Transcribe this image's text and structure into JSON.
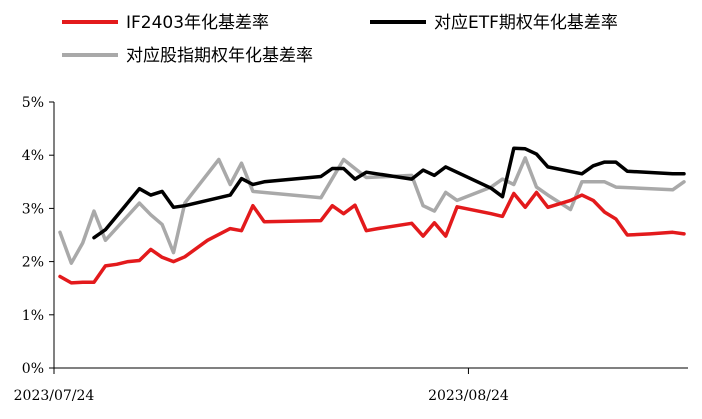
{
  "chart_data": {
    "type": "line",
    "ylim": [
      0,
      5
    ],
    "y_ticks": [
      "0%",
      "1%",
      "2%",
      "3%",
      "4%",
      "5%"
    ],
    "x_ticks": [
      "2023/07/24",
      "2023/08/24"
    ],
    "legend_position": "top",
    "grid": false,
    "series": [
      {
        "name": "IF2403年化基差率",
        "color": "#e31a1c",
        "points": [
          [
            0,
            1.72
          ],
          [
            1,
            1.6
          ],
          [
            2,
            1.61
          ],
          [
            3,
            1.61
          ],
          [
            4,
            1.92
          ],
          [
            5,
            1.95
          ],
          [
            6,
            2.0
          ],
          [
            7,
            2.02
          ],
          [
            8,
            2.23
          ],
          [
            9,
            2.08
          ],
          [
            10,
            2.0
          ],
          [
            11,
            2.09
          ],
          [
            13,
            2.4
          ],
          [
            15,
            2.62
          ],
          [
            16,
            2.58
          ],
          [
            17,
            3.05
          ],
          [
            18,
            2.75
          ],
          [
            23,
            2.77
          ],
          [
            24,
            3.05
          ],
          [
            25,
            2.9
          ],
          [
            26,
            3.06
          ],
          [
            27,
            2.58
          ],
          [
            28,
            2.62
          ],
          [
            31,
            2.72
          ],
          [
            32,
            2.48
          ],
          [
            33,
            2.73
          ],
          [
            34,
            2.48
          ],
          [
            35,
            3.03
          ],
          [
            38,
            2.9
          ],
          [
            39,
            2.85
          ],
          [
            40,
            3.28
          ],
          [
            41,
            3.02
          ],
          [
            42,
            3.3
          ],
          [
            43,
            3.02
          ],
          [
            45,
            3.15
          ],
          [
            46,
            3.25
          ],
          [
            47,
            3.15
          ],
          [
            48,
            2.93
          ],
          [
            49,
            2.8
          ],
          [
            50,
            2.5
          ],
          [
            52,
            2.52
          ],
          [
            54,
            2.55
          ],
          [
            55,
            2.52
          ]
        ]
      },
      {
        "name": "对应ETF期权年化基差率",
        "color": "#000000",
        "points": [
          [
            3,
            2.45
          ],
          [
            4,
            2.6
          ],
          [
            7,
            3.37
          ],
          [
            8,
            3.25
          ],
          [
            9,
            3.32
          ],
          [
            10,
            3.02
          ],
          [
            11,
            3.05
          ],
          [
            15,
            3.25
          ],
          [
            16,
            3.56
          ],
          [
            17,
            3.45
          ],
          [
            18,
            3.5
          ],
          [
            23,
            3.6
          ],
          [
            24,
            3.75
          ],
          [
            25,
            3.75
          ],
          [
            26,
            3.55
          ],
          [
            27,
            3.68
          ],
          [
            31,
            3.55
          ],
          [
            32,
            3.72
          ],
          [
            33,
            3.62
          ],
          [
            34,
            3.78
          ],
          [
            38,
            3.38
          ],
          [
            39,
            3.22
          ],
          [
            40,
            4.13
          ],
          [
            41,
            4.12
          ],
          [
            42,
            4.02
          ],
          [
            43,
            3.78
          ],
          [
            46,
            3.65
          ],
          [
            47,
            3.8
          ],
          [
            48,
            3.87
          ],
          [
            49,
            3.87
          ],
          [
            50,
            3.7
          ],
          [
            54,
            3.65
          ],
          [
            55,
            3.65
          ]
        ]
      },
      {
        "name": "对应股指期权年化基差率",
        "color": "#a9a9a9",
        "points": [
          [
            0,
            2.55
          ],
          [
            1,
            1.97
          ],
          [
            2,
            2.35
          ],
          [
            3,
            2.95
          ],
          [
            4,
            2.4
          ],
          [
            7,
            3.1
          ],
          [
            8,
            2.88
          ],
          [
            9,
            2.7
          ],
          [
            10,
            2.17
          ],
          [
            11,
            3.1
          ],
          [
            14,
            3.92
          ],
          [
            15,
            3.45
          ],
          [
            16,
            3.85
          ],
          [
            17,
            3.32
          ],
          [
            23,
            3.2
          ],
          [
            25,
            3.92
          ],
          [
            27,
            3.58
          ],
          [
            31,
            3.62
          ],
          [
            32,
            3.05
          ],
          [
            33,
            2.95
          ],
          [
            34,
            3.3
          ],
          [
            35,
            3.15
          ],
          [
            38,
            3.4
          ],
          [
            39,
            3.55
          ],
          [
            40,
            3.45
          ],
          [
            41,
            3.95
          ],
          [
            42,
            3.4
          ],
          [
            43,
            3.25
          ],
          [
            45,
            2.98
          ],
          [
            46,
            3.5
          ],
          [
            48,
            3.5
          ],
          [
            49,
            3.4
          ],
          [
            54,
            3.35
          ],
          [
            55,
            3.5
          ]
        ]
      }
    ]
  }
}
